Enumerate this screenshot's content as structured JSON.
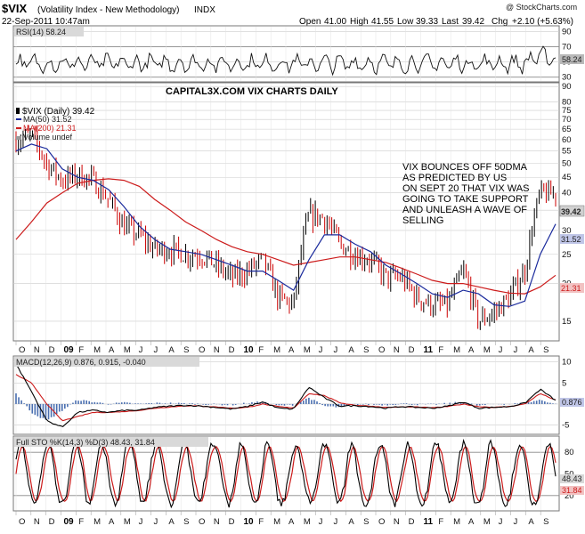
{
  "header": {
    "symbol": "$VIX",
    "name": "(Volatility Index - New Methodology)",
    "exchange": "INDX",
    "watermark": "@ StockCharts.com",
    "date": "22-Sep-2011 10:47am",
    "open_label": "Open",
    "open": "41.00",
    "high_label": "High",
    "high": "41.55",
    "low_label": "Low",
    "low": "39.33",
    "last_label": "Last",
    "last": "39.42",
    "chg_label": "Chg",
    "chg": "+2.10 (+5.63%)"
  },
  "colors": {
    "price_bar": "#000000",
    "down_bar": "#cc0000",
    "ma50": "#1a2a9c",
    "ma200": "#cc1b1b",
    "panel_bg": "#ffffff",
    "grid": "#cccccc",
    "label_bg": "#c9c9c9"
  },
  "legend": {
    "price": "$VIX (Daily) 39.42",
    "ma50": "MA(50) 31.52",
    "ma200": "MA(200) 21.31",
    "volume": "Volume undef"
  },
  "annotations": {
    "capital": "CAPITAL3X.COM VIX CHARTS DAILY",
    "note_lines": [
      "VIX BOUNCES OFF 50DMA",
      "AS PREDICTED BY US",
      "ON SEPT 20 THAT VIX WAS",
      "GOING TO TAKE SUPPORT",
      "AND UNLEASH A WAVE OF",
      "SELLING"
    ]
  },
  "price_tags": {
    "last": "39.42",
    "ma50": "31.52",
    "ma200": "21.31"
  },
  "rsi_tag": "58.24",
  "macd_tags": {
    "line": "0.876",
    "signal": "0.915"
  },
  "sto_tags": {
    "k": "48.43",
    "d": "31.84"
  },
  "chart_data": [
    {
      "type": "line",
      "title": "RSI(14) 58.24",
      "y_ticks": [
        30,
        50,
        70,
        90
      ],
      "ylim": [
        25,
        95
      ],
      "overbought": 70,
      "oversold": 30,
      "last": 58.24
    },
    {
      "type": "bar",
      "title": "$VIX (Daily) 39.42",
      "scale": "log",
      "y_ticks": [
        15,
        20,
        25,
        30,
        35,
        40,
        45,
        50,
        55,
        60,
        65,
        70,
        75,
        80,
        90
      ],
      "ylim": [
        13,
        92
      ],
      "x": [
        "Oct 2008",
        "Nov 2008",
        "Dec 2008",
        "Jan 2009",
        "Feb 2009",
        "Mar 2009",
        "Apr 2009",
        "May 2009",
        "Jun 2009",
        "Jul 2009",
        "Aug 2009",
        "Sep 2009",
        "Oct 2009",
        "Nov 2009",
        "Dec 2009",
        "Jan 2010",
        "Feb 2010",
        "Mar 2010",
        "Apr 2010",
        "May 2010",
        "Jun 2010",
        "Jul 2010",
        "Aug 2010",
        "Sep 2010",
        "Oct 2010",
        "Nov 2010",
        "Dec 2010",
        "Jan 2011",
        "Feb 2011",
        "Mar 2011",
        "Apr 2011",
        "May 2011",
        "Jun 2011",
        "Jul 2011",
        "Aug 2011",
        "Sep 2011"
      ],
      "series": [
        {
          "name": "$VIX (Daily) 39.42",
          "values": [
            60,
            62,
            50,
            44,
            46,
            44,
            38,
            31,
            29,
            26,
            26,
            25,
            25,
            23,
            21,
            22,
            24,
            18,
            17,
            34,
            33,
            27,
            25,
            24,
            21,
            21,
            18,
            17,
            17,
            22,
            15,
            16,
            18,
            22,
            40,
            39.42
          ]
        },
        {
          "name": "MA(50) 31.52",
          "values": [
            55,
            58,
            56,
            48,
            45,
            44,
            41,
            36,
            31,
            28,
            26,
            25.5,
            25,
            24,
            23,
            22,
            22,
            20.5,
            19,
            24,
            29,
            29,
            27,
            25.5,
            23,
            21.5,
            20,
            18.5,
            18,
            19,
            18.5,
            17,
            16.8,
            17.5,
            25,
            31.52
          ]
        },
        {
          "name": "MA(200) 21.31",
          "values": [
            28,
            32,
            37,
            40,
            43,
            44,
            44.5,
            44,
            42,
            38,
            35,
            32,
            30,
            28,
            26.5,
            25.5,
            25,
            24,
            23,
            23.5,
            24,
            24.5,
            24.5,
            24,
            23.5,
            22.5,
            21.5,
            20.5,
            20,
            20,
            19.5,
            19,
            18.6,
            18.5,
            19.5,
            21.31
          ]
        }
      ]
    },
    {
      "type": "line",
      "title": "MACD(12,26,9) 0.876, 0.915, -0.040",
      "y_ticks": [
        -5,
        0,
        5,
        10
      ],
      "ylim": [
        -7,
        11
      ],
      "series": [
        {
          "name": "MACD(12,26,9) 0.876",
          "values": [
            9.5,
            3,
            -4,
            -5.5,
            -2,
            -1.5,
            -2,
            -1.5,
            -1.5,
            -0.8,
            -0.5,
            -0.3,
            -0.5,
            -0.8,
            -1.2,
            -0.6,
            0.5,
            -1,
            -1.2,
            4,
            1.5,
            -0.5,
            -0.4,
            -0.6,
            -1,
            -0.6,
            -0.8,
            -1,
            -0.5,
            0.5,
            -1,
            -0.8,
            -0.6,
            0.2,
            3.5,
            0.876
          ]
        },
        {
          "name": "0.915",
          "values": [
            7,
            5,
            0,
            -4,
            -3,
            -2,
            -2,
            -1.8,
            -1.5,
            -1,
            -0.7,
            -0.4,
            -0.5,
            -0.7,
            -1,
            -0.8,
            0,
            -0.6,
            -1,
            2.5,
            2,
            0.3,
            -0.3,
            -0.5,
            -0.8,
            -0.7,
            -0.7,
            -0.9,
            -0.6,
            0,
            -0.6,
            -0.8,
            -0.6,
            0,
            2.5,
            0.915
          ]
        },
        {
          "name": "-0.040",
          "values": [
            2.5,
            -2,
            -4,
            -1.5,
            1,
            0.5,
            0,
            0.3,
            0,
            0.2,
            0.2,
            0.1,
            0,
            -0.1,
            -0.2,
            0.2,
            0.5,
            -0.4,
            -0.2,
            1.5,
            -0.5,
            -0.8,
            -0.1,
            -0.1,
            -0.2,
            0.1,
            -0.1,
            -0.1,
            0.1,
            0.5,
            -0.4,
            0,
            0,
            0.2,
            1,
            -0.04
          ]
        }
      ],
      "last": {
        "macd": 0.876,
        "signal": 0.915,
        "hist": -0.04
      }
    },
    {
      "type": "line",
      "title": "Full STO %K(14,3) %D(3) 48.43, 31.84",
      "y_ticks": [
        20,
        50,
        80
      ],
      "ylim": [
        0,
        100
      ],
      "last": {
        "k": 48.43,
        "d": 31.84
      }
    }
  ],
  "x_axis": {
    "labels": [
      "O",
      "N",
      "D",
      "09",
      "F",
      "M",
      "A",
      "M",
      "J",
      "J",
      "A",
      "S",
      "O",
      "N",
      "D",
      "10",
      "F",
      "M",
      "A",
      "M",
      "J",
      "J",
      "A",
      "S",
      "O",
      "N",
      "D",
      "11",
      "F",
      "M",
      "A",
      "M",
      "J",
      "J",
      "A",
      "S"
    ],
    "years": [
      "09",
      "10",
      "11"
    ]
  }
}
